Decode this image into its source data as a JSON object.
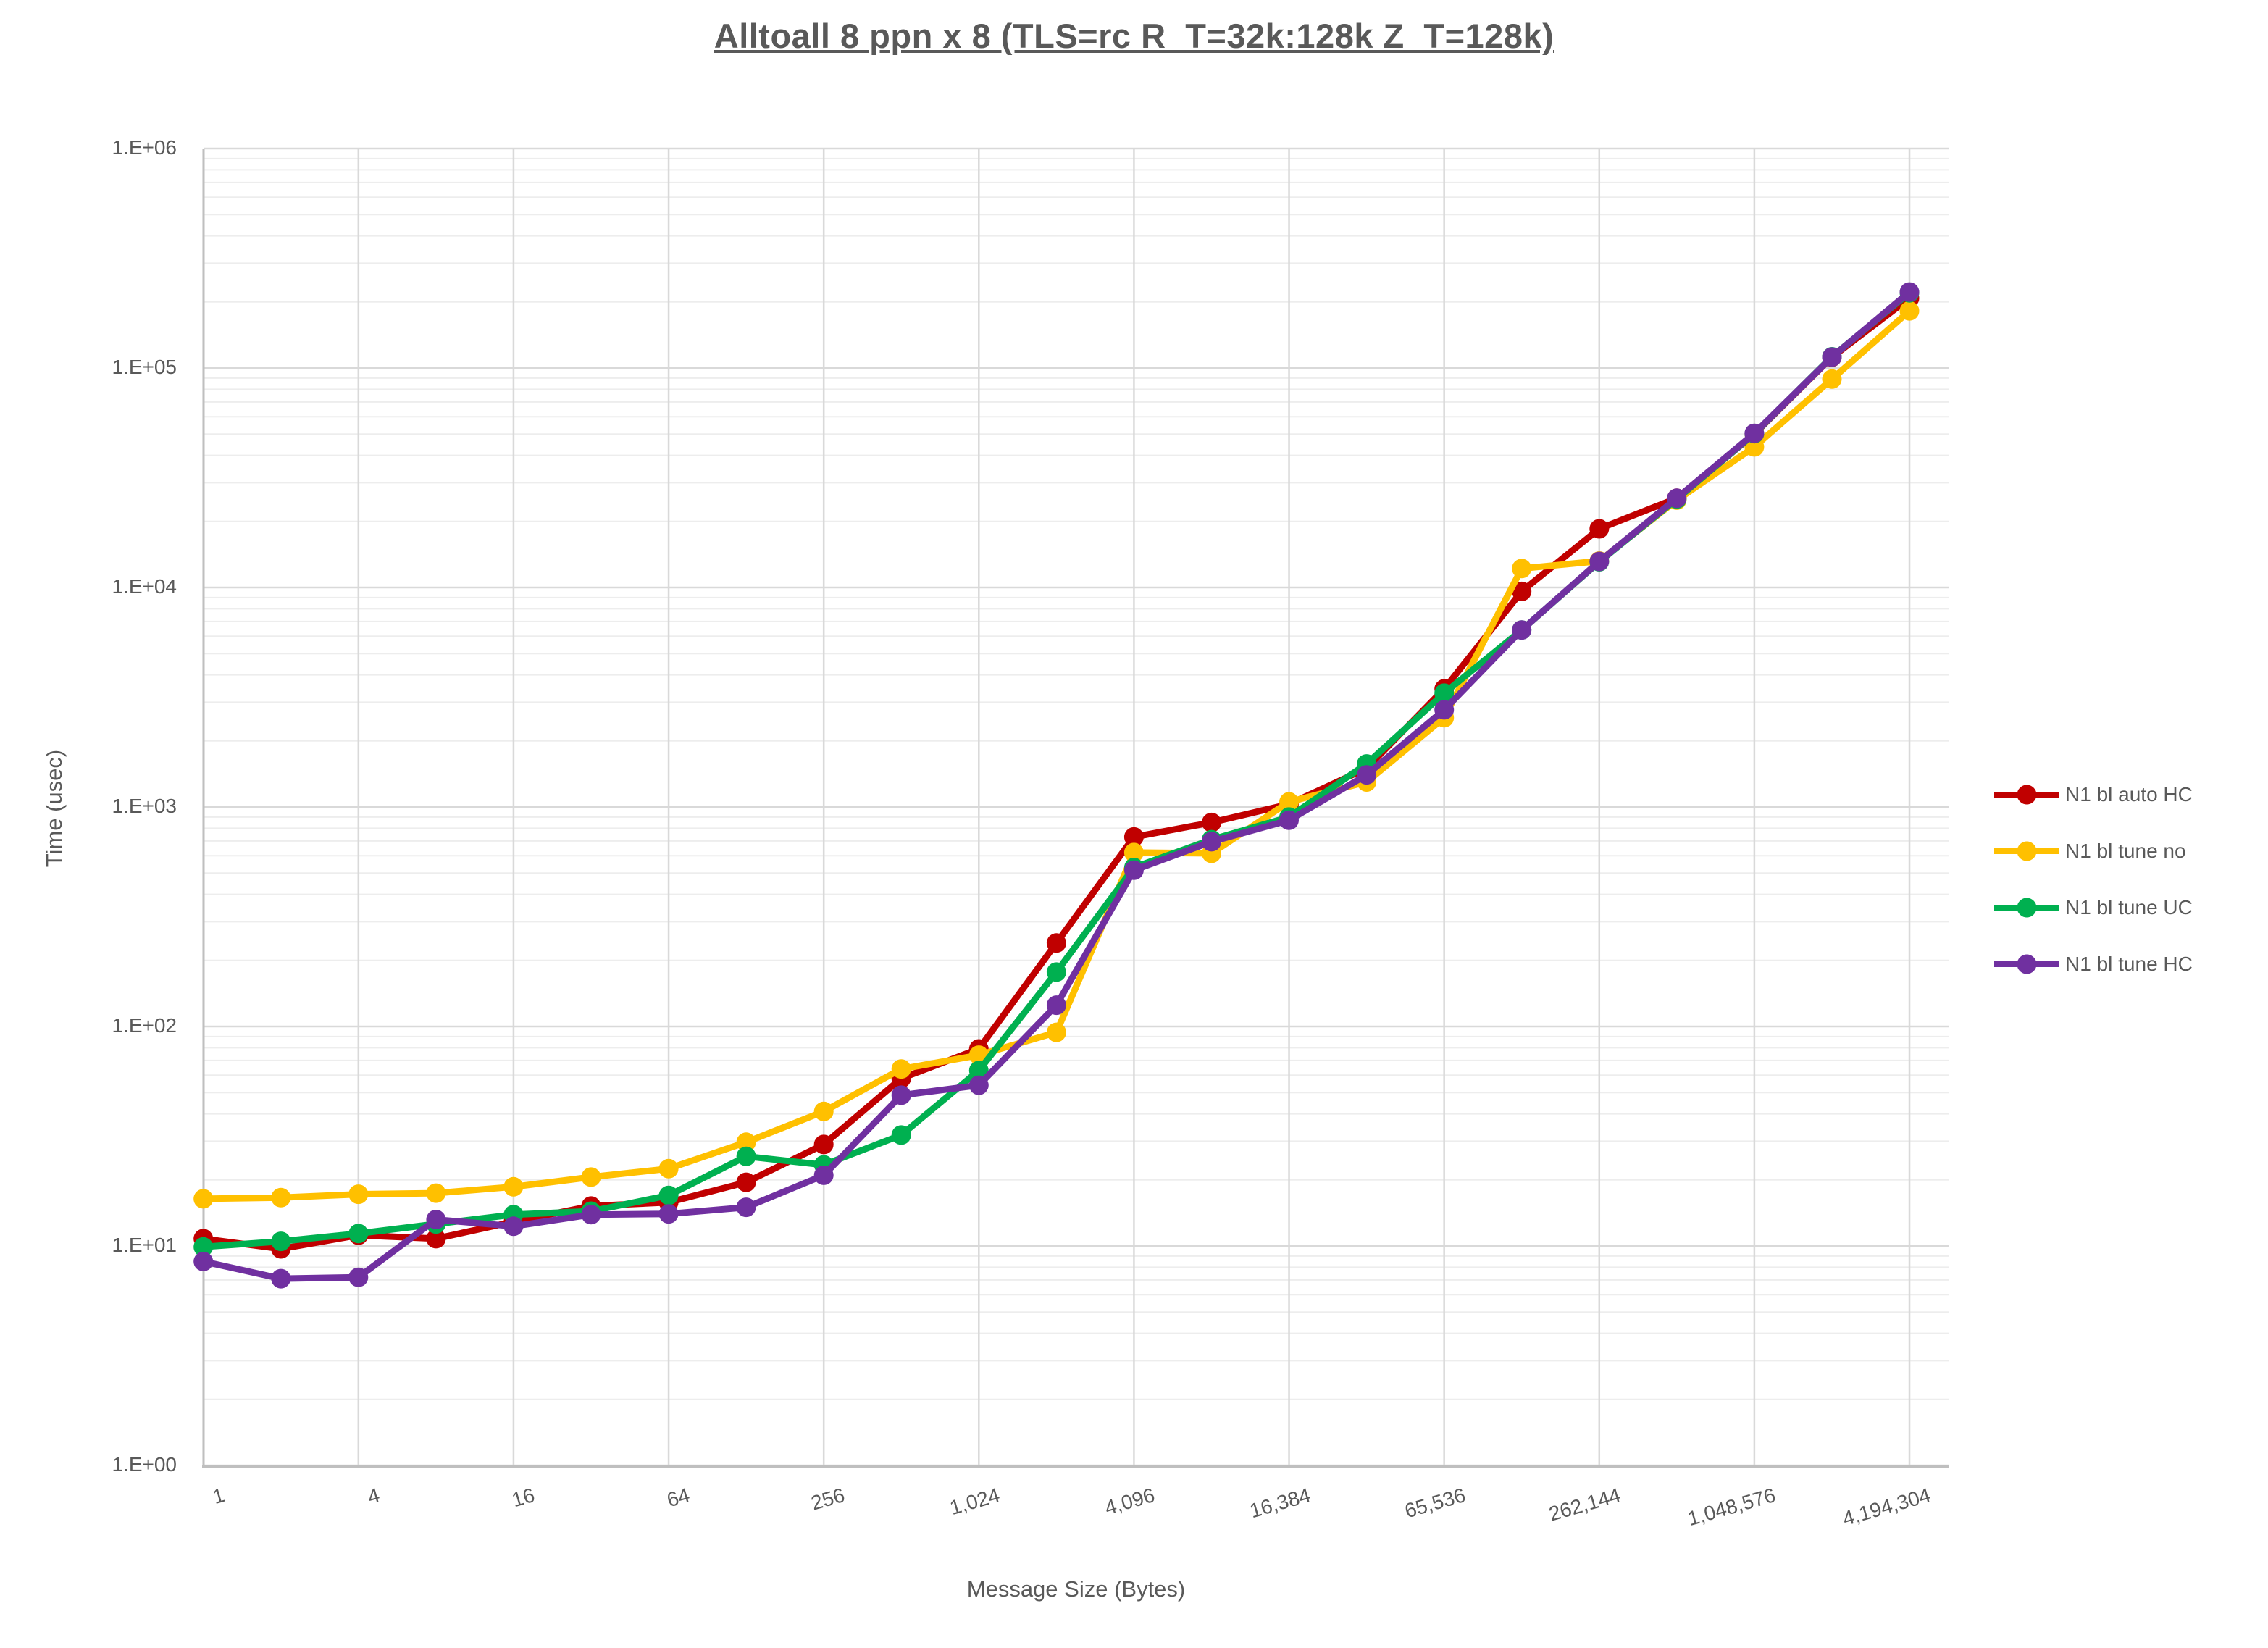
{
  "chart_data": {
    "type": "line",
    "title": "Alltoall 8 ppn x 8 (TLS=rc R_T=32k:128k Z_T=128k)",
    "xlabel": "Message Size (Bytes)",
    "ylabel": "Time (usec)",
    "x_scale": "log2",
    "y_scale": "log10",
    "ylim": [
      1,
      1000000
    ],
    "grid": true,
    "legend_position": "right",
    "x": [
      1,
      2,
      4,
      8,
      16,
      32,
      64,
      128,
      256,
      512,
      1024,
      2048,
      4096,
      8192,
      16384,
      32768,
      65536,
      131072,
      262144,
      524288,
      1048576,
      2097152,
      4194304
    ],
    "x_tick_labels": [
      "1",
      "4",
      "16",
      "64",
      "256",
      "1,024",
      "4,096",
      "16,384",
      "65,536",
      "262,144",
      "1,048,576",
      "4,194,304"
    ],
    "y_tick_labels": [
      "1.E+00",
      "1.E+01",
      "1.E+02",
      "1.E+03",
      "1.E+04",
      "1.E+05",
      "1.E+06"
    ],
    "series": [
      {
        "name": "N1 bl auto HC",
        "color": "#C00000",
        "values": [
          10.8,
          9.7,
          11.2,
          10.8,
          12.9,
          15.2,
          15.8,
          19.5,
          29,
          58,
          79,
          240,
          730,
          850,
          1030,
          1500,
          3450,
          9600,
          18500,
          25500,
          50000,
          112000,
          208000
        ]
      },
      {
        "name": "N1 bl tune no",
        "color": "#FFC000",
        "values": [
          16.4,
          16.6,
          17.2,
          17.4,
          18.6,
          20.6,
          22.5,
          29.7,
          41,
          64,
          74,
          94,
          620,
          615,
          1055,
          1300,
          2550,
          12200,
          13200,
          25000,
          43700,
          89000,
          182000
        ]
      },
      {
        "name": "N1 bl tune UC",
        "color": "#00B050",
        "values": [
          9.9,
          10.5,
          11.4,
          12.6,
          13.9,
          14.4,
          17,
          25.6,
          23.4,
          32,
          63,
          177,
          530,
          710,
          900,
          1570,
          3300,
          6400,
          13100,
          25300,
          50200,
          112500,
          220000
        ]
      },
      {
        "name": "N1 bl tune HC",
        "color": "#7030A0",
        "values": [
          8.5,
          7.1,
          7.2,
          13.2,
          12.3,
          13.9,
          14,
          15,
          21,
          48.6,
          54,
          125,
          515,
          695,
          870,
          1400,
          2770,
          6400,
          13150,
          25500,
          50400,
          112200,
          222000
        ]
      }
    ]
  }
}
